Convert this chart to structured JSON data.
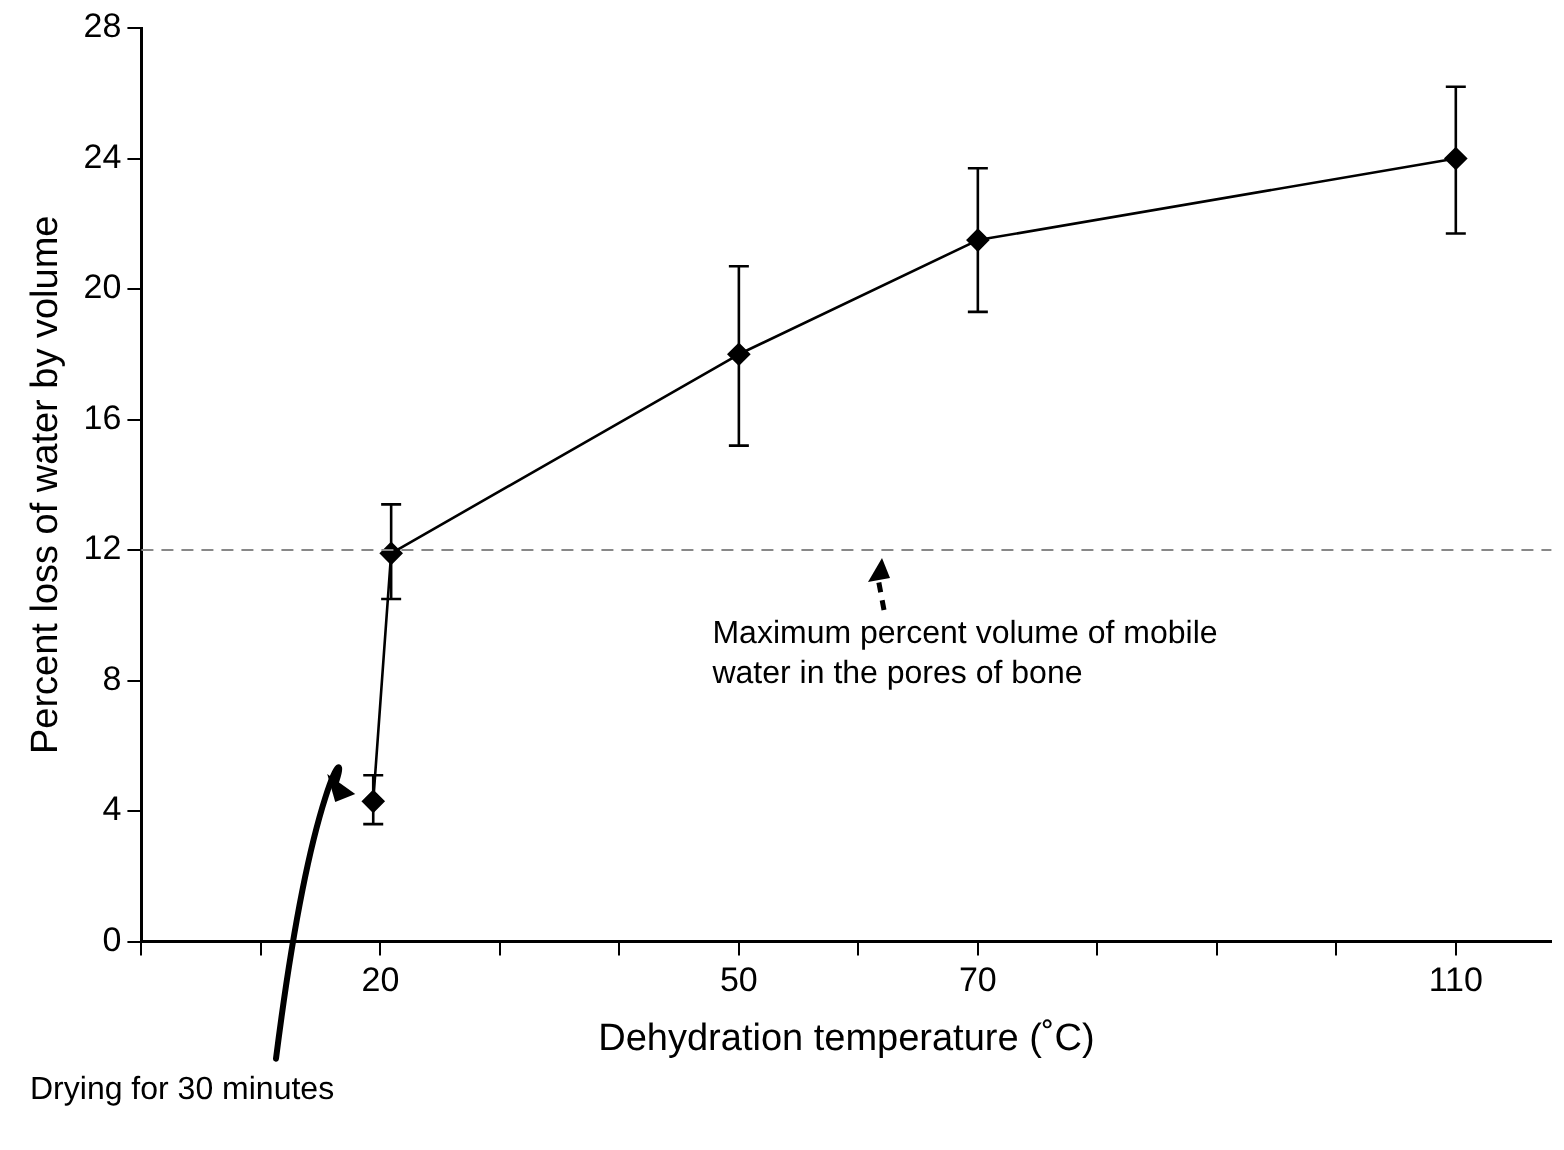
{
  "chart_data": {
    "type": "line",
    "xlabel": "Dehydration temperature (˚C)",
    "ylabel": "Percent loss of water by volume",
    "series": [
      {
        "color": "#000000",
        "x": [
          19.4,
          20.9,
          50,
          70,
          110
        ],
        "values": [
          4.3,
          11.9,
          18,
          21.5,
          24
        ],
        "errors": [
          [
            3.6,
            5.1
          ],
          [
            10.5,
            13.4
          ],
          [
            15.2,
            20.7
          ],
          [
            19.3,
            23.7
          ],
          [
            21.7,
            26.2
          ]
        ]
      }
    ],
    "xlim": [
      0,
      118
    ],
    "xticks": [
      {
        "value": 0,
        "label": null
      },
      {
        "value": 10,
        "label": null
      },
      20,
      {
        "value": 30,
        "label": null
      },
      {
        "value": 40,
        "label": null
      },
      50,
      {
        "value": 60,
        "label": null
      },
      70,
      {
        "value": 80,
        "label": null
      },
      {
        "value": 90,
        "label": null
      },
      {
        "value": 100,
        "label": null
      },
      110
    ],
    "ylim": [
      0,
      28
    ],
    "yticks": [
      0,
      4,
      8,
      12,
      16,
      20,
      24,
      28
    ],
    "ref_lines": [
      {
        "axis": "y",
        "value": 12,
        "label": "Maximum percent volume of mobile water in the pores of bone",
        "color": "#888888",
        "line_style": "dashed"
      }
    ],
    "annotations": [
      "Drying for 30 minutes"
    ],
    "grid": false,
    "legend": false,
    "marker": "diamond",
    "line_style": "solid"
  }
}
